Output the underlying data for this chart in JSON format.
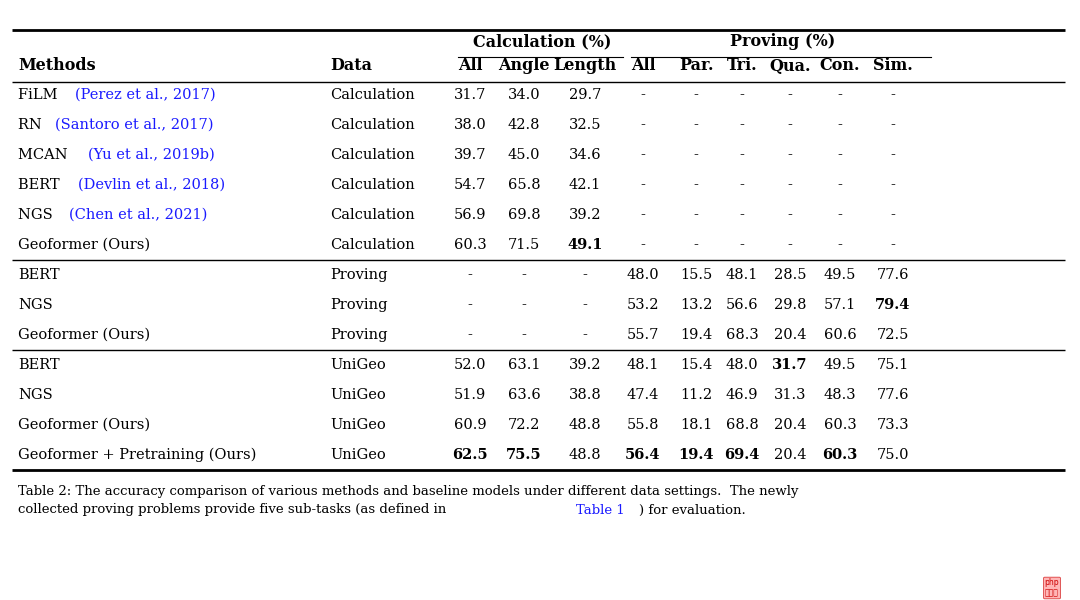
{
  "rows": [
    {
      "method_black": "FiLM ",
      "method_blue": "(Perez et al., 2017)",
      "data": "Calculation",
      "calc_all": "31.7",
      "calc_angle": "34.0",
      "calc_length": "29.7",
      "prov_all": "-",
      "prov_par": "-",
      "prov_tri": "-",
      "prov_qua": "-",
      "prov_con": "-",
      "prov_sim": "-",
      "bold_cells": [],
      "section": 0
    },
    {
      "method_black": "RN ",
      "method_blue": "(Santoro et al., 2017)",
      "data": "Calculation",
      "calc_all": "38.0",
      "calc_angle": "42.8",
      "calc_length": "32.5",
      "prov_all": "-",
      "prov_par": "-",
      "prov_tri": "-",
      "prov_qua": "-",
      "prov_con": "-",
      "prov_sim": "-",
      "bold_cells": [],
      "section": 0
    },
    {
      "method_black": "MCAN ",
      "method_blue": "(Yu et al., 2019b)",
      "data": "Calculation",
      "calc_all": "39.7",
      "calc_angle": "45.0",
      "calc_length": "34.6",
      "prov_all": "-",
      "prov_par": "-",
      "prov_tri": "-",
      "prov_qua": "-",
      "prov_con": "-",
      "prov_sim": "-",
      "bold_cells": [],
      "section": 0
    },
    {
      "method_black": "BERT ",
      "method_blue": "(Devlin et al., 2018)",
      "data": "Calculation",
      "calc_all": "54.7",
      "calc_angle": "65.8",
      "calc_length": "42.1",
      "prov_all": "-",
      "prov_par": "-",
      "prov_tri": "-",
      "prov_qua": "-",
      "prov_con": "-",
      "prov_sim": "-",
      "bold_cells": [],
      "section": 0
    },
    {
      "method_black": "NGS ",
      "method_blue": "(Chen et al., 2021)",
      "data": "Calculation",
      "calc_all": "56.9",
      "calc_angle": "69.8",
      "calc_length": "39.2",
      "prov_all": "-",
      "prov_par": "-",
      "prov_tri": "-",
      "prov_qua": "-",
      "prov_con": "-",
      "prov_sim": "-",
      "bold_cells": [],
      "section": 0
    },
    {
      "method_black": "Geoformer (Ours)",
      "method_blue": "",
      "data": "Calculation",
      "calc_all": "60.3",
      "calc_angle": "71.5",
      "calc_length": "49.1",
      "prov_all": "-",
      "prov_par": "-",
      "prov_tri": "-",
      "prov_qua": "-",
      "prov_con": "-",
      "prov_sim": "-",
      "bold_cells": [
        "calc_length"
      ],
      "section": 0,
      "divider_after": true
    },
    {
      "method_black": "BERT",
      "method_blue": "",
      "data": "Proving",
      "calc_all": "-",
      "calc_angle": "-",
      "calc_length": "-",
      "prov_all": "48.0",
      "prov_par": "15.5",
      "prov_tri": "48.1",
      "prov_qua": "28.5",
      "prov_con": "49.5",
      "prov_sim": "77.6",
      "bold_cells": [],
      "section": 1
    },
    {
      "method_black": "NGS",
      "method_blue": "",
      "data": "Proving",
      "calc_all": "-",
      "calc_angle": "-",
      "calc_length": "-",
      "prov_all": "53.2",
      "prov_par": "13.2",
      "prov_tri": "56.6",
      "prov_qua": "29.8",
      "prov_con": "57.1",
      "prov_sim": "79.4",
      "bold_cells": [
        "prov_sim"
      ],
      "section": 1
    },
    {
      "method_black": "Geoformer (Ours)",
      "method_blue": "",
      "data": "Proving",
      "calc_all": "-",
      "calc_angle": "-",
      "calc_length": "-",
      "prov_all": "55.7",
      "prov_par": "19.4",
      "prov_tri": "68.3",
      "prov_qua": "20.4",
      "prov_con": "60.6",
      "prov_sim": "72.5",
      "bold_cells": [],
      "section": 1,
      "divider_after": true
    },
    {
      "method_black": "BERT",
      "method_blue": "",
      "data": "UniGeo",
      "calc_all": "52.0",
      "calc_angle": "63.1",
      "calc_length": "39.2",
      "prov_all": "48.1",
      "prov_par": "15.4",
      "prov_tri": "48.0",
      "prov_qua": "31.7",
      "prov_con": "49.5",
      "prov_sim": "75.1",
      "bold_cells": [
        "prov_qua"
      ],
      "section": 2
    },
    {
      "method_black": "NGS",
      "method_blue": "",
      "data": "UniGeo",
      "calc_all": "51.9",
      "calc_angle": "63.6",
      "calc_length": "38.8",
      "prov_all": "47.4",
      "prov_par": "11.2",
      "prov_tri": "46.9",
      "prov_qua": "31.3",
      "prov_con": "48.3",
      "prov_sim": "77.6",
      "bold_cells": [],
      "section": 2
    },
    {
      "method_black": "Geoformer (Ours)",
      "method_blue": "",
      "data": "UniGeo",
      "calc_all": "60.9",
      "calc_angle": "72.2",
      "calc_length": "48.8",
      "prov_all": "55.8",
      "prov_par": "18.1",
      "prov_tri": "68.8",
      "prov_qua": "20.4",
      "prov_con": "60.3",
      "prov_sim": "73.3",
      "bold_cells": [],
      "section": 2
    },
    {
      "method_black": "Geoformer + Pretraining (Ours)",
      "method_blue": "",
      "data": "UniGeo",
      "calc_all": "62.5",
      "calc_angle": "75.5",
      "calc_length": "48.8",
      "prov_all": "56.4",
      "prov_par": "19.4",
      "prov_tri": "69.4",
      "prov_qua": "20.4",
      "prov_con": "60.3",
      "prov_sim": "75.0",
      "bold_cells": [
        "calc_all",
        "calc_angle",
        "prov_all",
        "prov_par",
        "prov_tri",
        "prov_con"
      ],
      "section": 2
    }
  ],
  "col_keys": [
    "calc_all",
    "calc_angle",
    "calc_length",
    "prov_all",
    "prov_par",
    "prov_tri",
    "prov_qua",
    "prov_con",
    "prov_sim"
  ],
  "bg_color": "#ffffff",
  "text_color": "#000000",
  "blue_color": "#1a1aff"
}
